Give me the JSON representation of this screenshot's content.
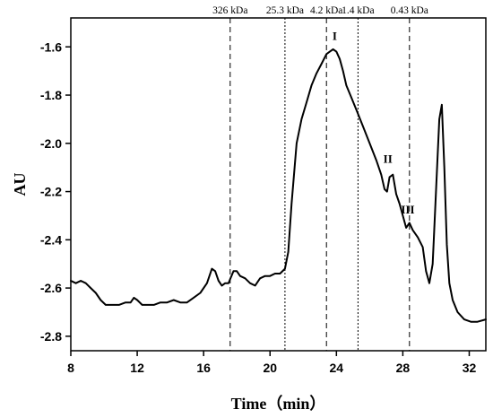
{
  "chart_data": {
    "type": "line",
    "xlabel": "Time（min）",
    "ylabel": "AU",
    "xlim": [
      8,
      33
    ],
    "ylim": [
      -2.86,
      -1.48
    ],
    "x_ticks": [
      "8",
      "12",
      "16",
      "20",
      "24",
      "28",
      "32"
    ],
    "y_ticks": [
      "-1.6",
      "-1.8",
      "-2.0",
      "-2.2",
      "-2.4",
      "-2.6",
      "-2.8"
    ],
    "x_tick_values": [
      8,
      12,
      16,
      20,
      24,
      28,
      32
    ],
    "y_tick_values": [
      -1.6,
      -1.8,
      -2.0,
      -2.2,
      -2.4,
      -2.6,
      -2.8
    ],
    "grid": false,
    "line_color": "#000000",
    "series": [
      {
        "x": [
          8.0,
          8.3,
          8.6,
          8.9,
          9.2,
          9.5,
          9.8,
          10.1,
          10.5,
          10.9,
          11.3,
          11.6,
          11.8,
          12.0,
          12.3,
          12.6,
          13.0,
          13.4,
          13.8,
          14.2,
          14.6,
          15.0,
          15.4,
          15.8,
          16.2,
          16.5,
          16.7,
          16.9,
          17.1,
          17.3,
          17.5,
          17.8,
          18.0,
          18.2,
          18.5,
          18.8,
          19.1,
          19.4,
          19.7,
          20.0,
          20.3,
          20.6,
          20.9,
          21.1,
          21.3,
          21.6,
          21.9,
          22.2,
          22.5,
          22.8,
          23.1,
          23.4,
          23.6,
          23.8,
          24.0,
          24.2,
          24.4,
          24.6,
          24.9,
          25.2,
          25.6,
          26.0,
          26.4,
          26.7,
          26.9,
          27.05,
          27.2,
          27.4,
          27.6,
          27.8,
          28.0,
          28.2,
          28.4,
          28.6,
          28.9,
          29.2,
          29.4,
          29.6,
          29.8,
          30.0,
          30.2,
          30.35,
          30.5,
          30.65,
          30.8,
          31.0,
          31.3,
          31.7,
          32.1,
          32.5,
          33.0
        ],
        "values": [
          -2.57,
          -2.58,
          -2.57,
          -2.58,
          -2.6,
          -2.62,
          -2.65,
          -2.67,
          -2.67,
          -2.67,
          -2.66,
          -2.66,
          -2.64,
          -2.65,
          -2.67,
          -2.67,
          -2.67,
          -2.66,
          -2.66,
          -2.65,
          -2.66,
          -2.66,
          -2.64,
          -2.62,
          -2.58,
          -2.52,
          -2.53,
          -2.57,
          -2.59,
          -2.58,
          -2.58,
          -2.53,
          -2.53,
          -2.55,
          -2.56,
          -2.58,
          -2.59,
          -2.56,
          -2.55,
          -2.55,
          -2.54,
          -2.54,
          -2.52,
          -2.45,
          -2.25,
          -2.0,
          -1.9,
          -1.83,
          -1.76,
          -1.71,
          -1.67,
          -1.63,
          -1.62,
          -1.61,
          -1.62,
          -1.65,
          -1.7,
          -1.76,
          -1.81,
          -1.86,
          -1.93,
          -2.0,
          -2.07,
          -2.13,
          -2.19,
          -2.2,
          -2.14,
          -2.13,
          -2.21,
          -2.25,
          -2.3,
          -2.35,
          -2.33,
          -2.36,
          -2.39,
          -2.43,
          -2.53,
          -2.58,
          -2.5,
          -2.2,
          -1.9,
          -1.84,
          -2.1,
          -2.42,
          -2.58,
          -2.65,
          -2.7,
          -2.73,
          -2.74,
          -2.74,
          -2.73
        ]
      }
    ],
    "markers": [
      {
        "x": 17.6,
        "label": "326 kDa",
        "dash": "6,4"
      },
      {
        "x": 20.9,
        "label": "25.3 kDa",
        "dash": "2,2"
      },
      {
        "x": 23.4,
        "label": "4.2 kDa",
        "dash": "6,4"
      },
      {
        "x": 25.3,
        "label": "1.4 kDa",
        "dash": "2,2"
      },
      {
        "x": 28.4,
        "label": "0.43 kDa",
        "dash": "6,4"
      }
    ],
    "peak_labels": [
      {
        "x": 23.9,
        "y": -1.6,
        "text": "I"
      },
      {
        "x": 27.1,
        "y": -2.11,
        "text": "II"
      },
      {
        "x": 28.3,
        "y": -2.32,
        "text": "III"
      }
    ]
  }
}
